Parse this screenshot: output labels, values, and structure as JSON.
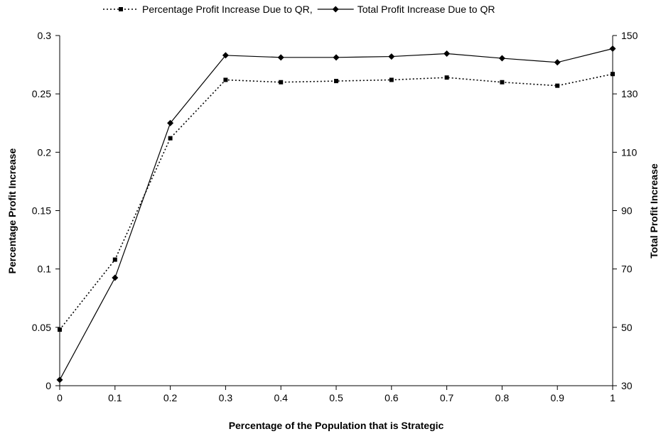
{
  "chart_data": {
    "type": "line",
    "x": [
      0,
      0.1,
      0.2,
      0.3,
      0.4,
      0.5,
      0.6,
      0.7,
      0.8,
      0.9,
      1
    ],
    "x_ticks": [
      "0",
      "0.1",
      "0.2",
      "0.3",
      "0.4",
      "0.5",
      "0.6",
      "0.7",
      "0.8",
      "0.9",
      "1"
    ],
    "xlabel": "Percentage of the Population that is Strategic",
    "ylabel_left": "Percentage Profit Increase",
    "ylabel_right": "Total Profit Increase",
    "ylim_left": [
      0,
      0.3
    ],
    "ylim_right": [
      30,
      150
    ],
    "y_ticks_left": [
      "0",
      "0.05",
      "0.1",
      "0.15",
      "0.2",
      "0.25",
      "0.3"
    ],
    "y_ticks_right": [
      "30",
      "50",
      "70",
      "90",
      "110",
      "130",
      "150"
    ],
    "grid": false,
    "legend_position": "top",
    "series": [
      {
        "name": "Percentage Profit Increase Due to QR,",
        "axis": "left",
        "style": "dotted",
        "marker": "square",
        "color": "#000000",
        "values": [
          0.048,
          0.108,
          0.212,
          0.262,
          0.26,
          0.261,
          0.262,
          0.264,
          0.26,
          0.257,
          0.267
        ]
      },
      {
        "name": "Total Profit Increase Due to QR",
        "axis": "right",
        "style": "solid",
        "marker": "diamond",
        "color": "#000000",
        "values": [
          32,
          67,
          120,
          143.2,
          142.5,
          142.5,
          142.8,
          143.8,
          142.2,
          140.8,
          145.5
        ]
      }
    ]
  }
}
